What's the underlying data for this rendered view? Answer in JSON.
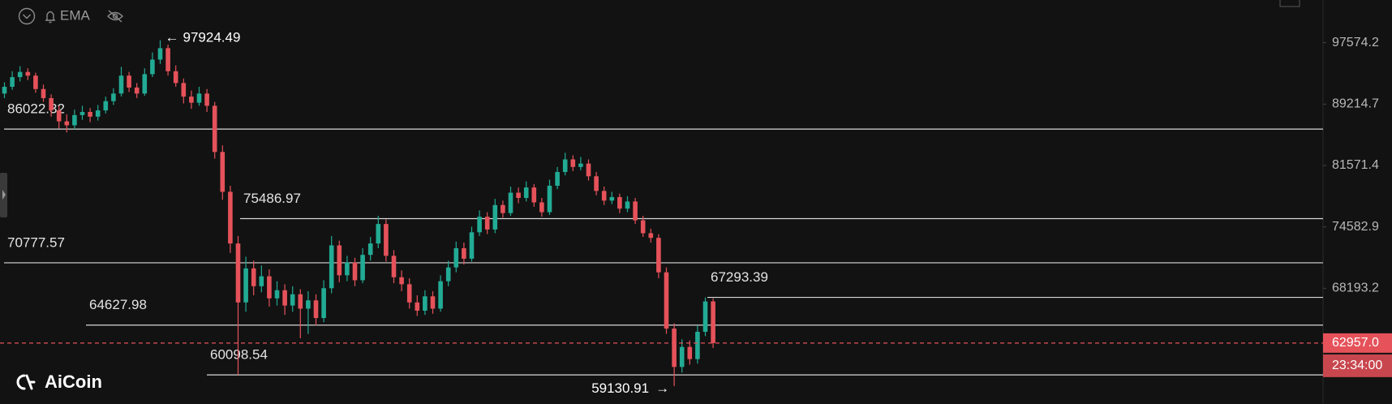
{
  "chart_data": {
    "type": "candlestick",
    "indicator": "EMA",
    "watermark": "AiCoin",
    "log_scale": true,
    "grid": false,
    "up_color": "#22ab94",
    "down_color": "#e5525a",
    "ylim": [
      57600,
      103850
    ],
    "yticks": [
      97574.2,
      89214.7,
      81571.4,
      74582.9,
      68193.2
    ],
    "levels": [
      86022.32,
      75486.97,
      70777.57,
      64627.98,
      67293.39,
      60098.54
    ],
    "high_marker": {
      "arrow": "←",
      "value": 97924.49
    },
    "low_marker": {
      "arrow": "→",
      "value": 59130.91
    },
    "last_price": {
      "value": 62957,
      "label": "62957.0"
    },
    "countdown": "23:34:00",
    "candles": [
      [
        90600,
        92100,
        90000,
        91500
      ],
      [
        91500,
        93600,
        91100,
        92800
      ],
      [
        92800,
        94300,
        92200,
        93500
      ],
      [
        93500,
        94000,
        92400,
        93000
      ],
      [
        93000,
        93400,
        90700,
        91200
      ],
      [
        91200,
        91800,
        89500,
        90000
      ],
      [
        90000,
        90500,
        87600,
        88400
      ],
      [
        88400,
        89000,
        86100,
        87000
      ],
      [
        87000,
        87900,
        85600,
        86500
      ],
      [
        86500,
        88500,
        86000,
        87800
      ],
      [
        87800,
        89000,
        87200,
        88200
      ],
      [
        88200,
        88700,
        86900,
        87600
      ],
      [
        87600,
        89100,
        87100,
        88400
      ],
      [
        88400,
        90200,
        88000,
        89600
      ],
      [
        89600,
        91300,
        89100,
        90600
      ],
      [
        90600,
        94200,
        90200,
        93000
      ],
      [
        93000,
        93500,
        90800,
        91400
      ],
      [
        91400,
        92000,
        90000,
        90600
      ],
      [
        90600,
        94000,
        90300,
        93200
      ],
      [
        93200,
        96200,
        92800,
        95200
      ],
      [
        95200,
        97924.49,
        94600,
        96800
      ],
      [
        96800,
        97300,
        93000,
        93600
      ],
      [
        93600,
        94400,
        91500,
        92000
      ],
      [
        92000,
        92600,
        89300,
        90200
      ],
      [
        90200,
        91000,
        88600,
        89400
      ],
      [
        89400,
        91500,
        89000,
        90600
      ],
      [
        90600,
        91200,
        88200,
        89000
      ],
      [
        89000,
        89500,
        82400,
        83200
      ],
      [
        83200,
        84000,
        77600,
        78500
      ],
      [
        78500,
        79200,
        71800,
        72800
      ],
      [
        72800,
        73600,
        60098.54,
        66800
      ],
      [
        66800,
        71400,
        65900,
        70200
      ],
      [
        70200,
        71000,
        67500,
        68400
      ],
      [
        68400,
        70500,
        67800,
        69400
      ],
      [
        69400,
        70100,
        66400,
        67200
      ],
      [
        67200,
        68900,
        66500,
        68000
      ],
      [
        68000,
        68600,
        65600,
        66500
      ],
      [
        66500,
        68400,
        65900,
        67600
      ],
      [
        67600,
        68100,
        63400,
        66200
      ],
      [
        66200,
        67900,
        63800,
        67000
      ],
      [
        67000,
        67600,
        64600,
        65300
      ],
      [
        65300,
        69000,
        64900,
        68200
      ],
      [
        68200,
        73600,
        67700,
        72600
      ],
      [
        72600,
        73100,
        68800,
        69500
      ],
      [
        69500,
        71500,
        68900,
        70800
      ],
      [
        70800,
        71300,
        68400,
        69000
      ],
      [
        69000,
        72300,
        68700,
        71600
      ],
      [
        71600,
        73500,
        71000,
        72800
      ],
      [
        72800,
        75800,
        72300,
        74900
      ],
      [
        74900,
        75400,
        70900,
        71500
      ],
      [
        71500,
        72100,
        68700,
        69300
      ],
      [
        69300,
        70000,
        67900,
        68600
      ],
      [
        68600,
        69200,
        66200,
        66800
      ],
      [
        66800,
        67500,
        65500,
        66000
      ],
      [
        66000,
        68000,
        65600,
        67400
      ],
      [
        67400,
        67900,
        65700,
        66200
      ],
      [
        66200,
        69500,
        65900,
        68900
      ],
      [
        68900,
        71000,
        68400,
        70300
      ],
      [
        70300,
        73000,
        69800,
        72300
      ],
      [
        72300,
        72900,
        70600,
        71200
      ],
      [
        71200,
        74600,
        70900,
        74000
      ],
      [
        74000,
        76400,
        73600,
        75700
      ],
      [
        75700,
        76200,
        73800,
        74300
      ],
      [
        74300,
        77700,
        73900,
        77000
      ],
      [
        77000,
        77500,
        75600,
        76100
      ],
      [
        76100,
        79100,
        75800,
        78400
      ],
      [
        78400,
        79000,
        77200,
        77800
      ],
      [
        77800,
        79700,
        77400,
        79000
      ],
      [
        79000,
        79400,
        76800,
        77300
      ],
      [
        77300,
        77800,
        75700,
        76200
      ],
      [
        76200,
        79900,
        75900,
        79200
      ],
      [
        79200,
        81400,
        78800,
        80800
      ],
      [
        80800,
        83100,
        80400,
        82300
      ],
      [
        82300,
        82800,
        80900,
        81400
      ],
      [
        81400,
        82600,
        81000,
        81800
      ],
      [
        81800,
        82300,
        79800,
        80300
      ],
      [
        80300,
        80800,
        78100,
        78600
      ],
      [
        78600,
        79100,
        77000,
        77500
      ],
      [
        77500,
        78500,
        77100,
        77900
      ],
      [
        77900,
        78300,
        76100,
        76600
      ],
      [
        76600,
        78000,
        76200,
        77400
      ],
      [
        77400,
        77800,
        74900,
        75300
      ],
      [
        75300,
        75800,
        73500,
        73900
      ],
      [
        73900,
        74400,
        72900,
        73400
      ],
      [
        73400,
        73800,
        69200,
        69800
      ],
      [
        69800,
        70300,
        63800,
        64300
      ],
      [
        64300,
        64800,
        59130.91,
        60800
      ],
      [
        60800,
        63300,
        60300,
        62600
      ],
      [
        62600,
        63200,
        61000,
        61500
      ],
      [
        61500,
        64600,
        61100,
        64000
      ],
      [
        64000,
        67293.39,
        63600,
        66900
      ],
      [
        66900,
        67200,
        62500,
        62957
      ]
    ]
  }
}
